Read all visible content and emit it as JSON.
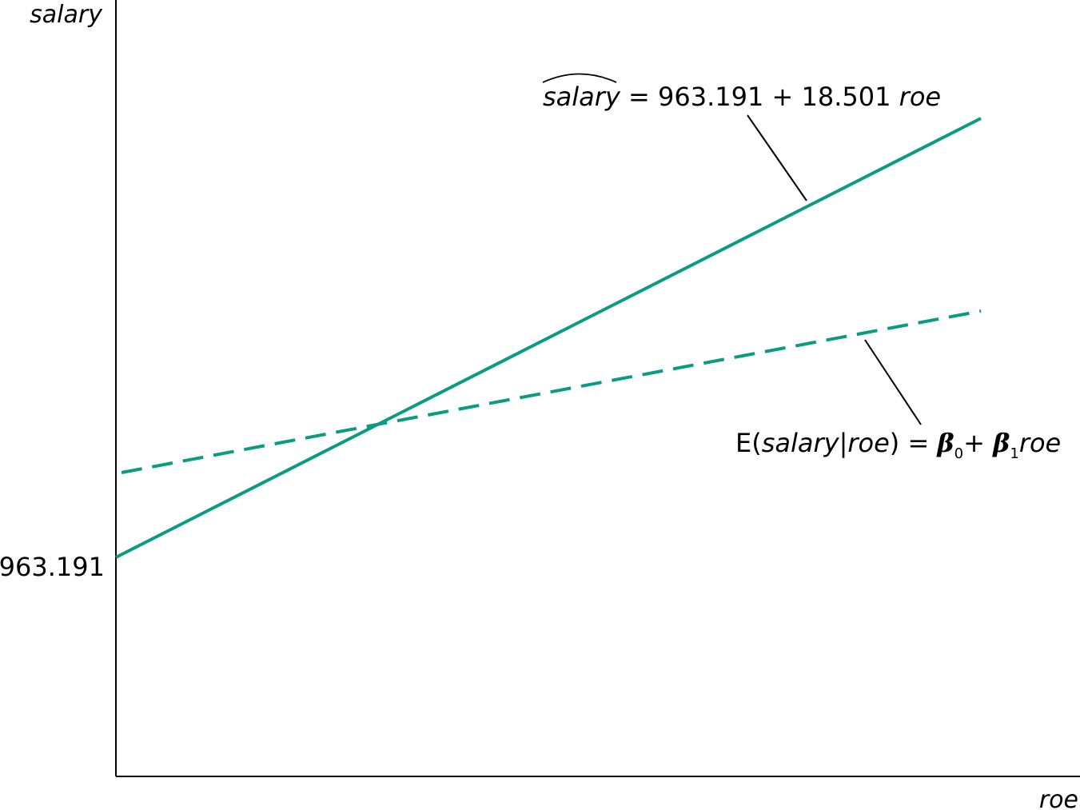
{
  "chart_data": {
    "type": "line",
    "xlabel": "roe",
    "ylabel": "salary",
    "y_tick_labels": [
      "963.191"
    ],
    "grid": false,
    "series": [
      {
        "style": "solid",
        "color": "#0a9c82",
        "intercept": 963.191,
        "slope": 18.501
      },
      {
        "style": "dashed",
        "color": "#0a9c82"
      }
    ],
    "annotations": {
      "fitted": {
        "hat_var": "salary",
        "equals": "=",
        "rhs": "963.191 + 18.501",
        "var": "roe"
      },
      "population": {
        "e_open": "E(",
        "cond_var": "salary",
        "bar": "|",
        "given_var": "roe",
        "close_eq": ") =",
        "beta": "β",
        "sub0": "0",
        "plus": "+",
        "sub1": "1",
        "var": "roe"
      }
    }
  }
}
